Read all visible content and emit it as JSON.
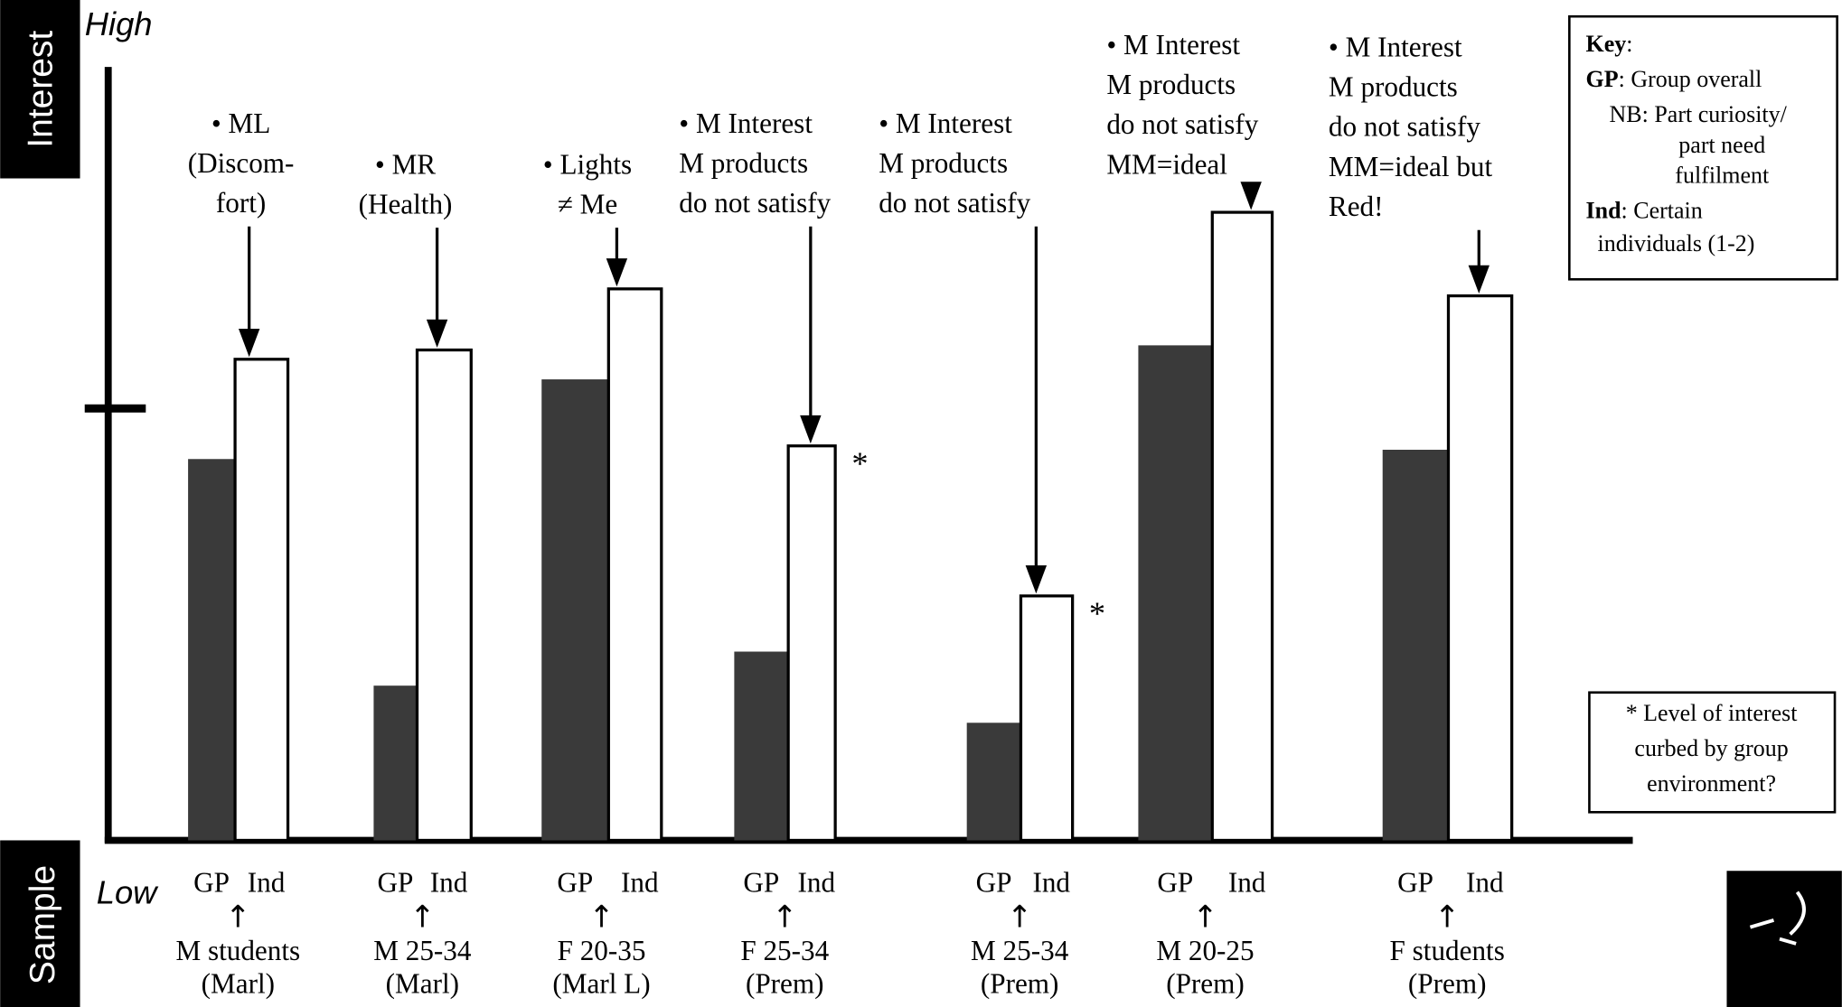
{
  "chart_data": {
    "type": "bar",
    "y_label": "Interest",
    "x_label": "Sample",
    "y_high": "High",
    "y_low": "Low",
    "ylim": [
      0,
      100
    ],
    "categories": [
      [
        "M students",
        "(Marl)"
      ],
      [
        "M 25-34",
        "(Marl)"
      ],
      [
        "F 20-35",
        "(Marl L)"
      ],
      [
        "F 25-34",
        "(Prem)"
      ],
      [
        "M 25-34",
        "(Prem)"
      ],
      [
        "M 20-25",
        "(Prem)"
      ],
      [
        "F students",
        "(Prem)"
      ]
    ],
    "series": [
      {
        "name": "GP",
        "color": "#3a3a3a",
        "values": [
          49.3,
          20.0,
          59.6,
          24.4,
          15.2,
          64.0,
          50.5
        ]
      },
      {
        "name": "Ind",
        "color": "#ffffff",
        "values": [
          62.2,
          63.4,
          71.3,
          51.0,
          31.6,
          81.2,
          70.4
        ]
      }
    ],
    "arrow": "↑",
    "markers": [
      null,
      null,
      null,
      "*",
      "*",
      null,
      null
    ],
    "annotations": [
      [
        "• ML",
        "(Discom-",
        "fort)"
      ],
      [
        "• MR",
        "(Health)"
      ],
      [
        "• Lights",
        "≠ Me"
      ],
      [
        "• M Interest",
        "M products",
        "do not satisfy"
      ],
      [
        "• M Interest",
        "M products",
        "do not satisfy"
      ],
      [
        "• M Interest",
        "M products",
        "do not satisfy",
        "MM=ideal"
      ],
      [
        "• M Interest",
        "M products",
        "do not satisfy",
        "MM=ideal but",
        "Red!"
      ]
    ],
    "key": [
      {
        "bold": "Key",
        "text": ":"
      },
      {
        "bold": "GP",
        "text": ": Group overall"
      },
      {
        "bold": null,
        "text": "NB: Part curiosity/"
      },
      {
        "bold": null,
        "text": "part need"
      },
      {
        "bold": null,
        "text": "fulfilment"
      },
      {
        "bold": "Ind",
        "text": ": Certain"
      },
      {
        "bold": null,
        "text": "individuals (1-2)"
      }
    ],
    "footnote": [
      "* Level of interest",
      "curbed by group",
      "environment?"
    ]
  }
}
